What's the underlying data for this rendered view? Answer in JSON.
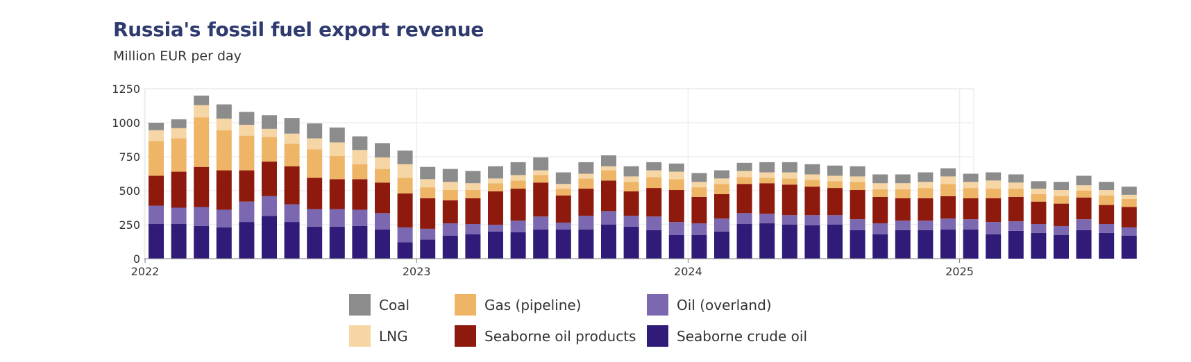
{
  "title": "Russia's fossil fuel export revenue",
  "subtitle": "Million EUR per day",
  "colors": {
    "coal": "#8c8c8c",
    "lng": "#f5d6a4",
    "gas_pipeline": "#efb566",
    "oil_products": "#8e1a0d",
    "oil_overland": "#7b68b0",
    "crude": "#301b78",
    "grid": "#eeeeee"
  },
  "legend": [
    {
      "label": "Coal",
      "color": "#8c8c8c"
    },
    {
      "label": "Gas (pipeline)",
      "color": "#efb566"
    },
    {
      "label": "Oil (overland)",
      "color": "#7b68b0"
    },
    {
      "label": "LNG",
      "color": "#f5d6a4"
    },
    {
      "label": "Seaborne oil products",
      "color": "#8e1a0d"
    },
    {
      "label": "Seaborne crude oil",
      "color": "#301b78"
    }
  ],
  "chart_data": {
    "type": "bar",
    "stacked": true,
    "title": "Russia's fossil fuel export revenue",
    "subtitle": "Million EUR per day",
    "xlabel": "",
    "ylabel": "",
    "ylim": [
      0,
      1250
    ],
    "yticks": [
      0,
      250,
      500,
      750,
      1000,
      1250
    ],
    "yticks_labels": [
      "0",
      "250",
      "500",
      "750",
      "1000",
      "1250"
    ],
    "xticks_labels": [
      "2022",
      "2023",
      "2024",
      "2025"
    ],
    "xticks_index": [
      0,
      12,
      24,
      36
    ],
    "categories": [
      "2022-01",
      "2022-02",
      "2022-03",
      "2022-04",
      "2022-05",
      "2022-06",
      "2022-07",
      "2022-08",
      "2022-09",
      "2022-10",
      "2022-11",
      "2022-12",
      "2023-01",
      "2023-02",
      "2023-03",
      "2023-04",
      "2023-05",
      "2023-06",
      "2023-07",
      "2023-08",
      "2023-09",
      "2023-10",
      "2023-11",
      "2023-12",
      "2024-01",
      "2024-02",
      "2024-03",
      "2024-04",
      "2024-05",
      "2024-06",
      "2024-07",
      "2024-08",
      "2024-09",
      "2024-10",
      "2024-11",
      "2024-12",
      "2025-01",
      "2025-02",
      "2025-03",
      "2025-04",
      "2025-05",
      "2025-06",
      "2025-07",
      "2025-08"
    ],
    "series": [
      {
        "name": "Seaborne crude oil",
        "color": "#301b78",
        "values": [
          255,
          255,
          240,
          230,
          270,
          315,
          270,
          235,
          235,
          240,
          215,
          120,
          140,
          170,
          180,
          200,
          195,
          215,
          215,
          215,
          250,
          235,
          210,
          175,
          175,
          200,
          255,
          260,
          250,
          245,
          250,
          210,
          180,
          210,
          210,
          215,
          215,
          180,
          205,
          190,
          175,
          210,
          190,
          170
        ]
      },
      {
        "name": "Oil (overland)",
        "color": "#7b68b0",
        "values": [
          135,
          120,
          140,
          130,
          150,
          145,
          130,
          130,
          130,
          120,
          120,
          110,
          80,
          90,
          75,
          50,
          85,
          95,
          50,
          100,
          100,
          80,
          100,
          95,
          85,
          95,
          80,
          70,
          70,
          75,
          70,
          80,
          80,
          70,
          70,
          80,
          75,
          90,
          70,
          65,
          65,
          80,
          65,
          60
        ]
      },
      {
        "name": "Seaborne oil products",
        "color": "#8e1a0d",
        "values": [
          220,
          265,
          295,
          290,
          230,
          255,
          280,
          230,
          220,
          225,
          225,
          250,
          225,
          170,
          190,
          245,
          235,
          250,
          200,
          200,
          225,
          180,
          210,
          235,
          195,
          180,
          215,
          225,
          225,
          210,
          200,
          215,
          195,
          165,
          165,
          165,
          155,
          175,
          180,
          165,
          165,
          160,
          140,
          150
        ]
      },
      {
        "name": "Gas (pipeline)",
        "color": "#efb566",
        "values": [
          255,
          245,
          365,
          295,
          255,
          180,
          165,
          210,
          170,
          110,
          100,
          115,
          80,
          75,
          60,
          60,
          60,
          55,
          50,
          75,
          75,
          70,
          80,
          80,
          70,
          75,
          50,
          40,
          45,
          50,
          50,
          60,
          55,
          65,
          75,
          90,
          75,
          70,
          60,
          55,
          55,
          50,
          70,
          60
        ]
      },
      {
        "name": "LNG",
        "color": "#f5d6a4",
        "values": [
          80,
          75,
          90,
          85,
          80,
          60,
          75,
          80,
          100,
          105,
          85,
          100,
          60,
          60,
          50,
          35,
          40,
          35,
          35,
          35,
          30,
          40,
          50,
          55,
          40,
          40,
          45,
          40,
          45,
          40,
          40,
          40,
          45,
          45,
          45,
          55,
          45,
          60,
          45,
          40,
          45,
          40,
          40,
          30
        ]
      },
      {
        "name": "Coal",
        "color": "#8c8c8c",
        "values": [
          55,
          65,
          70,
          105,
          95,
          100,
          115,
          110,
          110,
          100,
          105,
          100,
          90,
          95,
          90,
          90,
          95,
          95,
          85,
          85,
          80,
          75,
          60,
          60,
          65,
          60,
          60,
          75,
          75,
          75,
          75,
          75,
          65,
          65,
          70,
          60,
          60,
          60,
          60,
          55,
          60,
          70,
          60,
          60
        ]
      }
    ]
  }
}
